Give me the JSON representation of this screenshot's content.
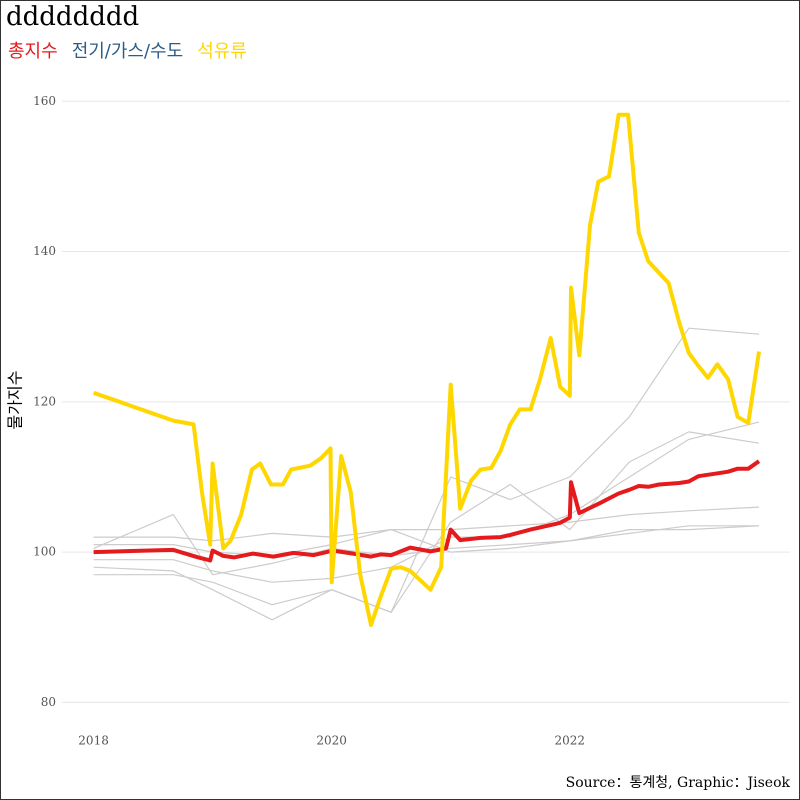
{
  "chart_data": {
    "type": "line",
    "title": "dddddddd",
    "legend_items": [
      {
        "name": "총지수",
        "color": "#e41a1c"
      },
      {
        "name": "전기/가스/수도",
        "color": "#2c5c8a"
      },
      {
        "name": "석유류",
        "color": "#ffd700"
      }
    ],
    "y_label": "물가지수",
    "caption": "Source：통계청, Graphic：Jiseok",
    "xlim": [
      2017.55,
      2023.85
    ],
    "xticks": [
      2018,
      2020,
      2022
    ],
    "ylim": [
      75,
      161.5
    ],
    "yticks": [
      80,
      100,
      120,
      140,
      160
    ],
    "grid": true,
    "background_color": "#cccccc",
    "background_x": [
      2018,
      2018.67,
      2019,
      2019.5,
      2020,
      2020.5,
      2021,
      2021.5,
      2022,
      2022.5,
      2023,
      2023.59
    ],
    "background_series": [
      {
        "values": [
          100.5,
          105,
          97,
          98.5,
          100.5,
          99.5,
          100.5,
          101,
          101.5,
          103,
          103,
          103.5
        ]
      },
      {
        "values": [
          102,
          102,
          101.5,
          102.5,
          102,
          103,
          103,
          103.5,
          104,
          105,
          105.5,
          106
        ]
      },
      {
        "values": [
          98,
          97.5,
          95,
          91,
          95,
          92,
          110,
          107,
          110,
          118,
          129.8,
          129
        ]
      },
      {
        "values": [
          99,
          99,
          97.5,
          96,
          96.5,
          98,
          102,
          102,
          105,
          110,
          115,
          117.3
        ]
      },
      {
        "values": [
          101,
          101,
          100,
          99.5,
          101,
          103,
          100,
          100.5,
          101.5,
          102.5,
          103.5,
          103.5
        ]
      },
      {
        "values": [
          97,
          97,
          96,
          93,
          95,
          92,
          104,
          109,
          103,
          112,
          116,
          114.5
        ]
      }
    ],
    "series": [
      {
        "name": "총지수",
        "color": "#e41a1c",
        "x": [
          2018,
          2018.67,
          2018.88,
          2018.98,
          2019.0,
          2019.09,
          2019.18,
          2019.34,
          2019.51,
          2019.68,
          2019.85,
          2020.01,
          2020.18,
          2020.33,
          2020.41,
          2020.5,
          2020.66,
          2020.83,
          2020.96,
          2021.0,
          2021.08,
          2021.25,
          2021.42,
          2021.5,
          2021.67,
          2021.84,
          2021.92,
          2022.0,
          2022.01,
          2022.08,
          2022.25,
          2022.41,
          2022.5,
          2022.58,
          2022.66,
          2022.75,
          2022.92,
          2023.0,
          2023.08,
          2023.25,
          2023.33,
          2023.41,
          2023.5,
          2023.59
        ],
        "values": [
          100,
          100.3,
          99.3,
          98.9,
          100.2,
          99.5,
          99.3,
          99.8,
          99.4,
          99.9,
          99.6,
          100.2,
          99.8,
          99.4,
          99.7,
          99.6,
          100.6,
          100.1,
          100.5,
          103,
          101.6,
          101.9,
          102,
          102.3,
          103,
          103.6,
          103.9,
          104.6,
          109.3,
          105.2,
          106.5,
          107.8,
          108.3,
          108.8,
          108.7,
          109,
          109.2,
          109.4,
          110.1,
          110.5,
          110.7,
          111.1,
          111.1,
          112.1
        ]
      },
      {
        "name": "석유류",
        "color": "#ffd700",
        "x": [
          2018,
          2018.67,
          2018.84,
          2018.91,
          2018.98,
          2019.0,
          2019.09,
          2019.15,
          2019.24,
          2019.33,
          2019.4,
          2019.49,
          2019.59,
          2019.66,
          2019.82,
          2019.91,
          2019.99,
          2020.0,
          2020.08,
          2020.16,
          2020.24,
          2020.33,
          2020.41,
          2020.5,
          2020.58,
          2020.66,
          2020.83,
          2020.92,
          2021.0,
          2021.08,
          2021.17,
          2021.25,
          2021.34,
          2021.42,
          2021.5,
          2021.58,
          2021.67,
          2021.75,
          2021.84,
          2021.92,
          2022.0,
          2022.01,
          2022.08,
          2022.17,
          2022.24,
          2022.33,
          2022.41,
          2022.49,
          2022.58,
          2022.66,
          2022.83,
          2022.92,
          2023.0,
          2023.08,
          2023.16,
          2023.24,
          2023.33,
          2023.41,
          2023.5,
          2023.59
        ],
        "values": [
          121.2,
          117.5,
          117,
          108,
          101,
          111.8,
          100.5,
          101.5,
          105,
          111,
          111.8,
          109,
          109,
          111,
          111.5,
          112.5,
          113.8,
          96,
          112.8,
          108,
          97,
          90.3,
          94,
          97.8,
          98,
          97.5,
          95,
          98,
          122.3,
          105.8,
          109.5,
          111,
          111.2,
          113.5,
          117,
          119,
          119,
          123,
          128.5,
          122,
          120.8,
          135.2,
          126.2,
          143.5,
          149.3,
          150,
          158.2,
          158.2,
          142.5,
          138.7,
          135.8,
          130.5,
          126.5,
          124.8,
          123.2,
          125,
          123,
          118,
          117.2,
          126.7
        ]
      }
    ]
  }
}
